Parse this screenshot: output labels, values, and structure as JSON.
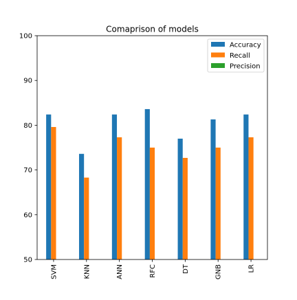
{
  "chart_data": {
    "type": "bar",
    "title": "Comaprison of models",
    "xlabel": "",
    "ylabel": "",
    "categories": [
      "SVM",
      "KNN",
      "ANN",
      "RFC",
      "DT",
      "GNB",
      "LR"
    ],
    "series": [
      {
        "name": "Accuracy",
        "color": "#1f77b4",
        "values": [
          82.4,
          73.6,
          82.4,
          83.6,
          77.0,
          81.3,
          82.4
        ]
      },
      {
        "name": "Recall",
        "color": "#ff7f0e",
        "values": [
          79.6,
          68.3,
          77.3,
          75.0,
          72.7,
          75.0,
          77.3
        ]
      },
      {
        "name": "Precision",
        "color": "#2ca02c",
        "values": [
          null,
          null,
          null,
          null,
          null,
          null,
          null
        ]
      }
    ],
    "ylim": [
      50,
      100
    ],
    "yticks": [
      50,
      60,
      70,
      80,
      90,
      100
    ],
    "grid": false,
    "legend_position": "upper right"
  }
}
